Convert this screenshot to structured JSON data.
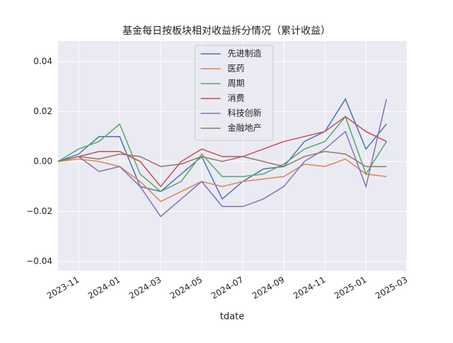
{
  "chart_data": {
    "type": "line",
    "title": "基金每日按板块相对收益拆分情况（累计收益）",
    "x_label": "tdate",
    "x": [
      "2023-10",
      "2023-11",
      "2023-12",
      "2024-01",
      "2024-02",
      "2024-03",
      "2024-04",
      "2024-05",
      "2024-06",
      "2024-07",
      "2024-08",
      "2024-09",
      "2024-10",
      "2024-11",
      "2024-12",
      "2025-01",
      "2025-02"
    ],
    "xlim": [
      "2023-10",
      "2025-03"
    ],
    "xticks": [
      "2023-11",
      "2024-01",
      "2024-03",
      "2024-05",
      "2024-07",
      "2024-09",
      "2024-11",
      "2025-01",
      "2025-03"
    ],
    "ylim": [
      -0.0437,
      0.0482
    ],
    "yticks": [
      {
        "value": -0.04,
        "label": "−0.04"
      },
      {
        "value": -0.02,
        "label": "−0.02"
      },
      {
        "value": 0,
        "label": "0.00"
      },
      0.02,
      0.04
    ],
    "grid": true,
    "legend": "upper center",
    "series": [
      {
        "name": "先进制造",
        "color": "#4c72b0",
        "values": [
          0,
          0.003,
          0.01,
          0.01,
          -0.01,
          -0.012,
          -0.005,
          0.002,
          -0.015,
          -0.008,
          -0.003,
          -0.002,
          0.008,
          0.012,
          0.025,
          0.005,
          0.015
        ]
      },
      {
        "name": "医药",
        "color": "#dd8452",
        "values": [
          0,
          0.001,
          0.0,
          -0.002,
          -0.008,
          -0.016,
          -0.012,
          -0.008,
          -0.01,
          -0.008,
          -0.007,
          -0.006,
          -0.001,
          -0.002,
          0.001,
          -0.005,
          -0.006
        ]
      },
      {
        "name": "周期",
        "color": "#55a868",
        "values": [
          0,
          0.005,
          0.008,
          0.015,
          -0.005,
          -0.012,
          -0.008,
          0.003,
          -0.006,
          -0.006,
          -0.005,
          -0.001,
          0.005,
          0.008,
          0.018,
          -0.005,
          0.008
        ]
      },
      {
        "name": "消费",
        "color": "#c44e52",
        "values": [
          0,
          0.002,
          0.004,
          0.004,
          0.0,
          -0.01,
          0.0,
          0.005,
          0.002,
          0.002,
          0.005,
          0.008,
          0.01,
          0.012,
          0.018,
          0.012,
          0.008
        ]
      },
      {
        "name": "科技创新",
        "color": "#8172b3",
        "values": [
          0,
          0.002,
          -0.004,
          -0.002,
          -0.01,
          -0.022,
          -0.015,
          -0.008,
          -0.018,
          -0.018,
          -0.015,
          -0.01,
          0.0,
          0.005,
          0.012,
          -0.01,
          0.025
        ]
      },
      {
        "name": "金融地产",
        "color": "#937860",
        "values": [
          0,
          0.002,
          0.001,
          0.003,
          0.002,
          -0.002,
          -0.001,
          0.002,
          0.0,
          0.002,
          0.0,
          -0.002,
          0.002,
          0.004,
          0.003,
          -0.002,
          -0.002
        ]
      }
    ]
  }
}
